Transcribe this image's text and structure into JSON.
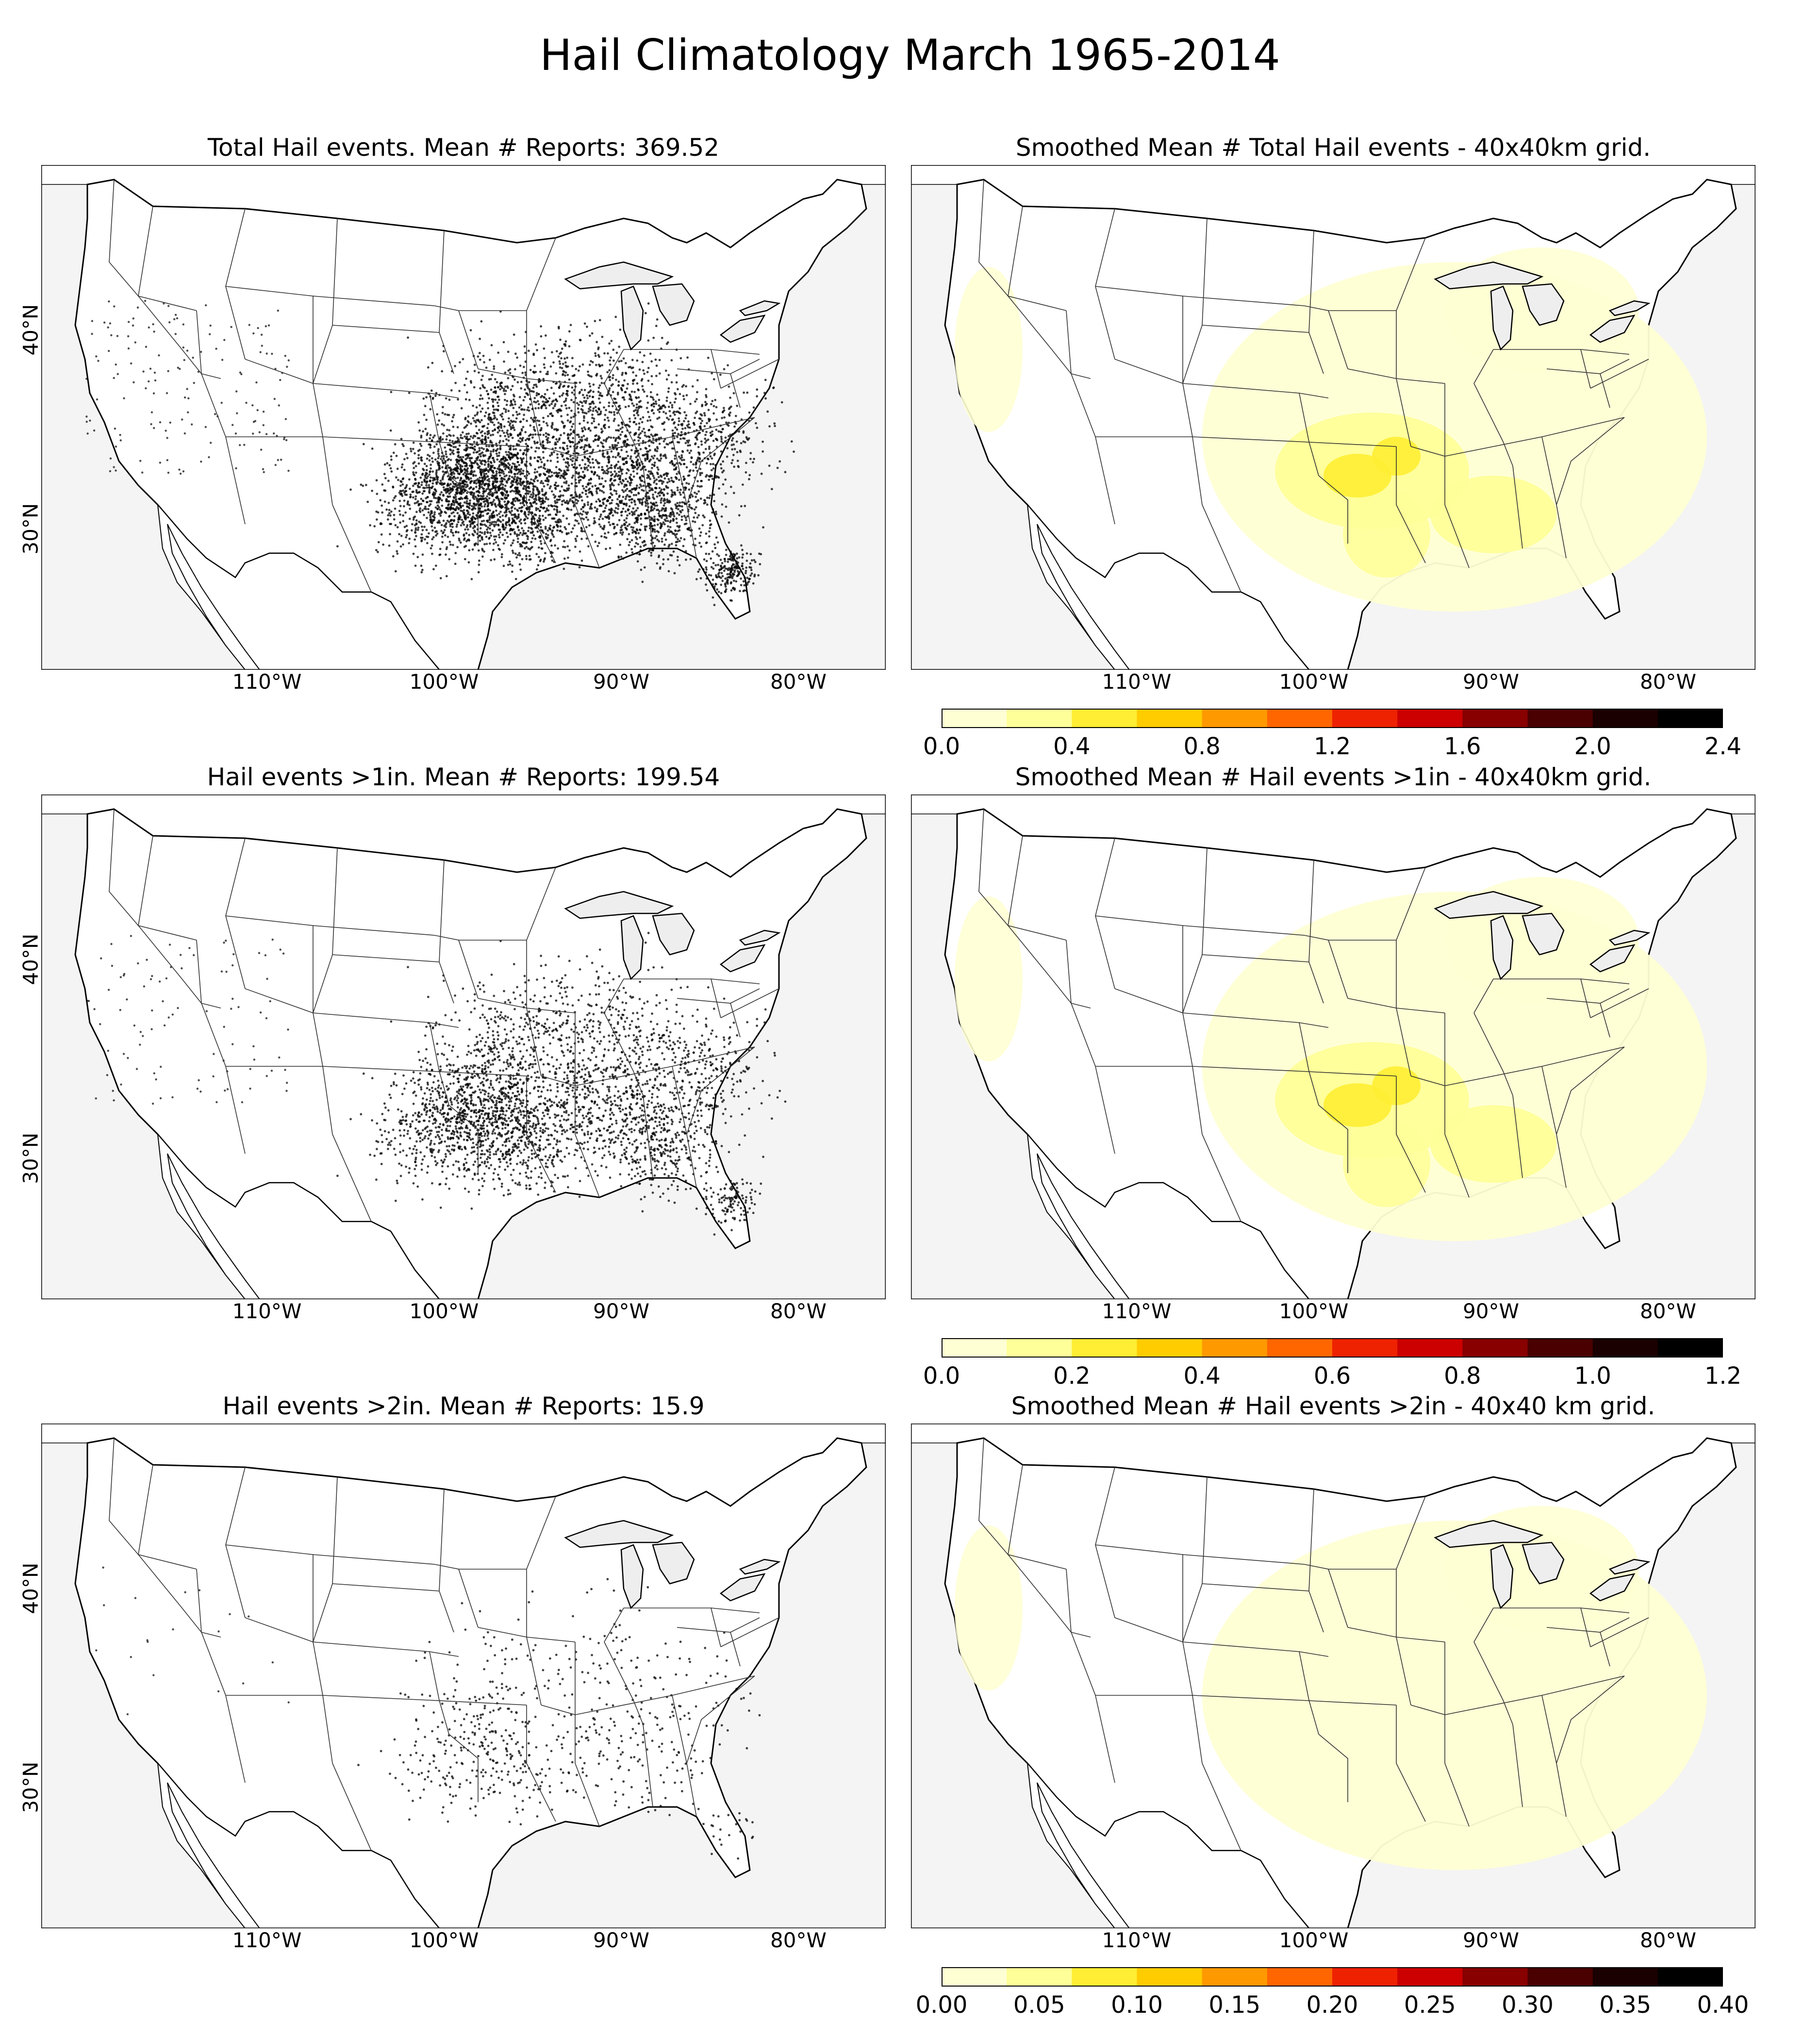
{
  "figure": {
    "title": "Hail Climatology March 1965-2014"
  },
  "axes": {
    "lon_ticks": [
      "110°W",
      "100°W",
      "90°W",
      "80°W"
    ],
    "lat_ticks": [
      "40°N",
      "30°N"
    ]
  },
  "panels": [
    {
      "title": "Total Hail events. Mean # Reports: 369.52",
      "kind": "points",
      "density": 1.0
    },
    {
      "title": "Smoothed Mean # Total Hail events - 40x40km grid.",
      "kind": "smoothed"
    },
    {
      "title": "Hail events >1in. Mean # Reports: 199.54",
      "kind": "points",
      "density": 0.6
    },
    {
      "title": "Smoothed Mean # Hail events >1in - 40x40km grid.",
      "kind": "smoothed"
    },
    {
      "title": "Hail events >2in. Mean # Reports: 15.9",
      "kind": "points",
      "density": 0.12
    },
    {
      "title": "Smoothed Mean # Hail events >2in - 40x40 km grid.",
      "kind": "smoothed"
    }
  ],
  "colorbars": [
    {
      "ticks": [
        "0.0",
        "0.4",
        "0.8",
        "1.2",
        "1.6",
        "2.0",
        "2.4"
      ],
      "min": 0,
      "max": 2.4
    },
    {
      "ticks": [
        "0.0",
        "0.2",
        "0.4",
        "0.6",
        "0.8",
        "1.0",
        "1.2"
      ],
      "min": 0,
      "max": 1.2
    },
    {
      "ticks": [
        "0.00",
        "0.05",
        "0.10",
        "0.15",
        "0.20",
        "0.25",
        "0.30",
        "0.35",
        "0.40"
      ],
      "min": 0,
      "max": 0.4
    }
  ],
  "colors": {
    "colormap": [
      "#ffffd4",
      "#ffff99",
      "#ffee33",
      "#ffcc00",
      "#ff9900",
      "#ff6600",
      "#ee2200",
      "#cc0000",
      "#880000",
      "#4a0000",
      "#1a0000",
      "#000000"
    ],
    "ocean": "#f4f4f4",
    "land": "#ffffff",
    "lakes": "#eeeeee",
    "borders": "#000000"
  }
}
